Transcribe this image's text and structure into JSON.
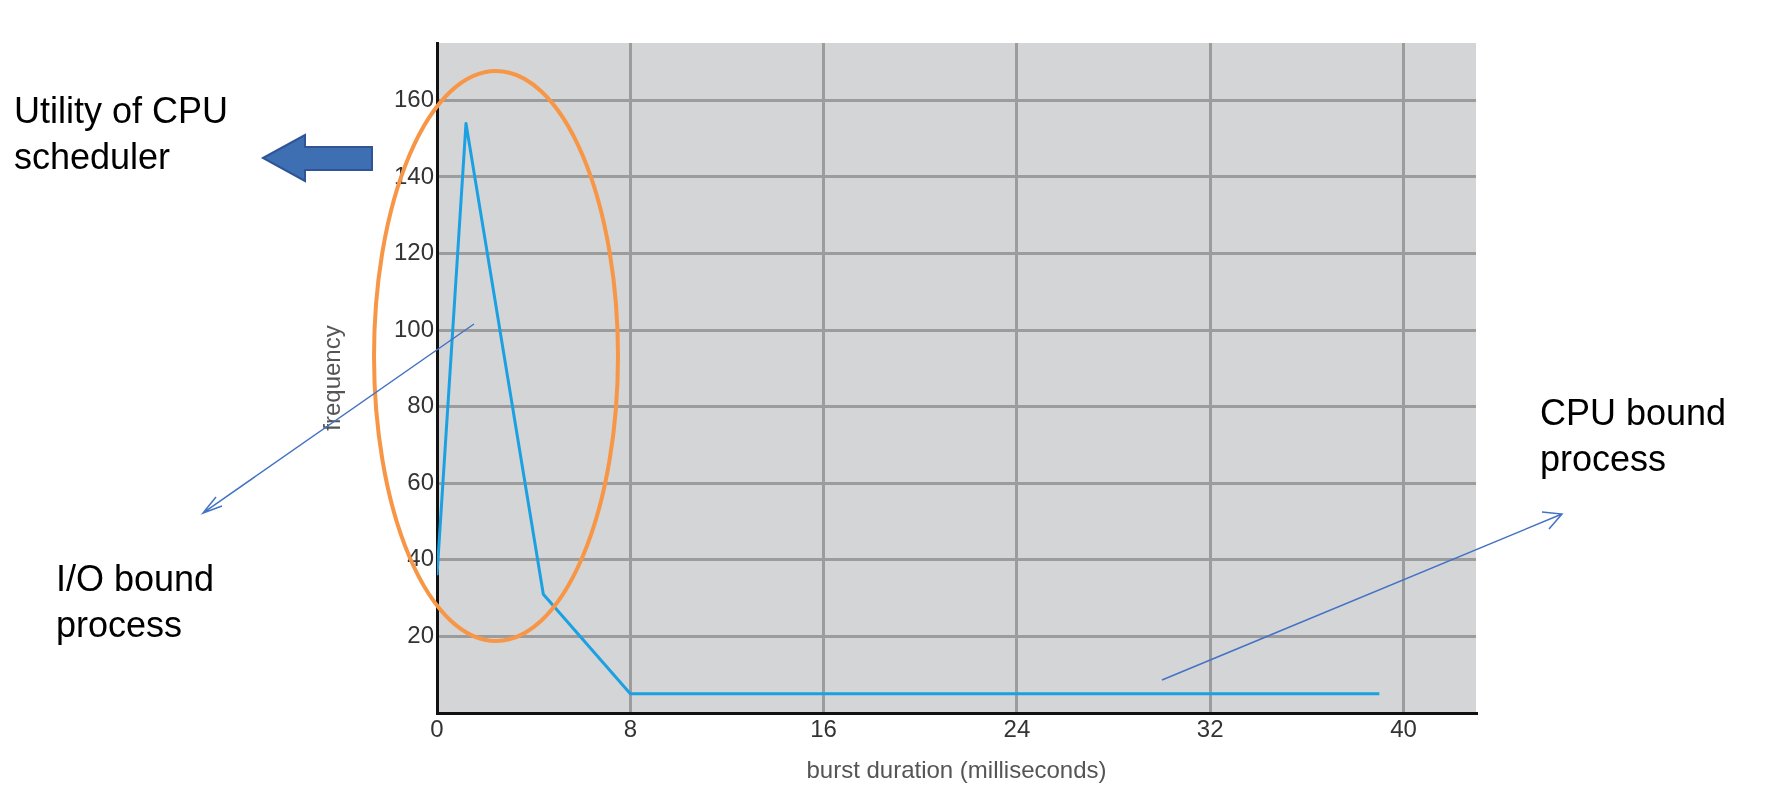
{
  "chart_data": {
    "type": "line",
    "xlabel": "burst duration (milliseconds)",
    "ylabel": "frequency",
    "x": [
      0,
      1.2,
      4.4,
      8,
      39
    ],
    "series": [
      {
        "color": "#1ba1e2",
        "values": [
          36,
          154,
          31,
          5,
          5
        ]
      }
    ],
    "xlim": [
      0,
      43
    ],
    "xticks": [
      0,
      8,
      16,
      24,
      32,
      40
    ],
    "ylim": [
      0,
      175
    ],
    "yticks": [
      20,
      40,
      60,
      80,
      100,
      120,
      140,
      160
    ],
    "grid": true,
    "marker": "none",
    "line_style": "solid",
    "annotations": [
      "Utility of CPU scheduler",
      "I/O bound process",
      "CPU bound process"
    ]
  }
}
